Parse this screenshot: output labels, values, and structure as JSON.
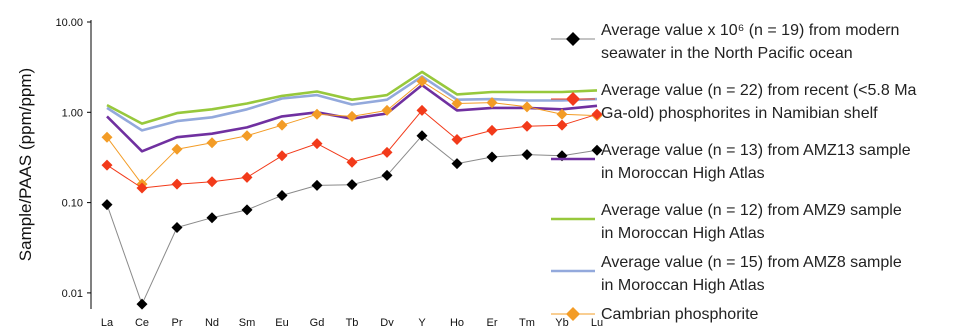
{
  "chart_data": {
    "type": "line",
    "title": "",
    "xlabel": "",
    "ylabel": "Sample/PAAS (ppm/ppm)",
    "yscale": "log",
    "ylim": [
      0.007,
      10
    ],
    "y_ticks": [
      "0.01",
      "0.10",
      "1.00",
      "10.00"
    ],
    "categories": [
      "La",
      "Ce",
      "Pr",
      "Nd",
      "Sm",
      "Eu",
      "Gd",
      "Tb",
      "Dy",
      "Y",
      "Ho",
      "Er",
      "Tm",
      "Yb",
      "Lu"
    ],
    "legend_position": "right",
    "series": [
      {
        "name": "AMZ9",
        "legend": [
          "Average value (n = 12) from AMZ9 sample",
          "in Moroccan High Atlas"
        ],
        "color": "#97c83c",
        "marker": "none",
        "values": [
          1.2,
          0.75,
          0.98,
          1.08,
          1.25,
          1.52,
          1.7,
          1.38,
          1.55,
          2.8,
          1.58,
          1.68,
          1.68,
          1.68,
          1.75
        ]
      },
      {
        "name": "AMZ8",
        "legend": [
          "Average value (n = 15) from AMZ8 sample",
          "in Moroccan High Atlas"
        ],
        "color": "#93a9dc",
        "marker": "none",
        "values": [
          1.12,
          0.63,
          0.8,
          0.88,
          1.08,
          1.42,
          1.55,
          1.22,
          1.38,
          2.5,
          1.38,
          1.4,
          1.35,
          1.35,
          1.4
        ]
      },
      {
        "name": "AMZ13",
        "legend": [
          "Average value (n = 13) from AMZ13 sample",
          "in Moroccan High Atlas"
        ],
        "color": "#7030a0",
        "marker": "none",
        "values": [
          0.9,
          0.37,
          0.53,
          0.58,
          0.68,
          0.9,
          1.0,
          0.85,
          0.97,
          2.0,
          1.05,
          1.12,
          1.12,
          1.08,
          1.18
        ]
      },
      {
        "name": "Cambrian phosphorite",
        "legend": [
          "Cambrian phosphorite"
        ],
        "color": "#f39c26",
        "marker": "diamond",
        "values": [
          0.53,
          0.16,
          0.39,
          0.46,
          0.55,
          0.72,
          0.95,
          0.9,
          1.05,
          2.2,
          1.25,
          1.28,
          1.15,
          0.95,
          0.92
        ]
      },
      {
        "name": "Namibian shelf phosphorites",
        "legend": [
          "Average value (n = 22) from recent (<5.8 Ma",
          "Ga-old) phosphorites in Namibian shelf"
        ],
        "color": "#f23a1a",
        "marker": "diamond",
        "values": [
          0.26,
          0.145,
          0.16,
          0.17,
          0.19,
          0.33,
          0.45,
          0.28,
          0.36,
          1.05,
          0.5,
          0.63,
          0.7,
          0.72,
          0.95
        ]
      },
      {
        "name": "North Pacific seawater",
        "legend": [
          "Average value x 10⁶ (n = 19) from modern",
          "seawater in the North Pacific ocean"
        ],
        "color": "#000000",
        "line_color": "#8a8a8a",
        "marker": "diamond",
        "values": [
          0.095,
          0.0075,
          0.053,
          0.068,
          0.083,
          0.12,
          0.155,
          0.158,
          0.2,
          0.55,
          0.27,
          0.32,
          0.34,
          0.33,
          0.38
        ]
      }
    ],
    "legend_order": [
      "North Pacific seawater",
      "Namibian shelf phosphorites",
      "AMZ13",
      "AMZ9",
      "AMZ8",
      "Cambrian phosphorite"
    ]
  }
}
